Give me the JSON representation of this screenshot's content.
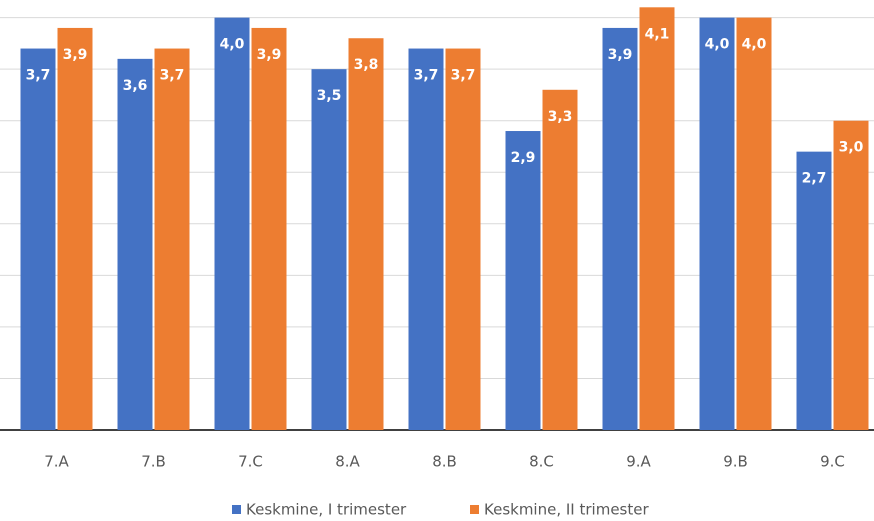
{
  "chart_data": {
    "type": "bar",
    "categories": [
      "7.A",
      "7.B",
      "7.C",
      "8.A",
      "8.B",
      "8.C",
      "9.A",
      "9.B",
      "9.C"
    ],
    "series": [
      {
        "name": "Keskmine, I trimester",
        "color": "#4472c4",
        "values": [
          3.7,
          3.6,
          4.0,
          3.5,
          3.7,
          2.9,
          3.9,
          4.0,
          2.7
        ],
        "value_labels": [
          "3,7",
          "3,6",
          "4,0",
          "3,5",
          "3,7",
          "2,9",
          "3,9",
          "4,0",
          "2,7"
        ]
      },
      {
        "name": "Keskmine, II trimester",
        "color": "#ed7d31",
        "values": [
          3.9,
          3.7,
          3.9,
          3.8,
          3.7,
          3.3,
          4.1,
          4.0,
          3.0
        ],
        "value_labels": [
          "3,9",
          "3,7",
          "3,9",
          "3,8",
          "3,7",
          "3,3",
          "4,1",
          "4,0",
          "3,0"
        ]
      }
    ],
    "ylim": [
      0,
      4.2
    ],
    "yticks": [
      0,
      0.5,
      1,
      1.5,
      2,
      2.5,
      3,
      3.5,
      4
    ],
    "grid": true,
    "legend": "bottom"
  }
}
